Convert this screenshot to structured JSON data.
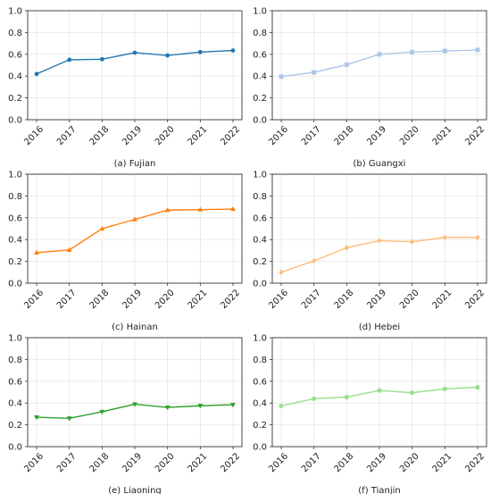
{
  "chart_data": [
    {
      "type": "line",
      "caption": "(a) Fujian",
      "x": [
        "2016",
        "2017",
        "2018",
        "2019",
        "2020",
        "2021",
        "2022"
      ],
      "series": [
        {
          "values": [
            0.42,
            0.55,
            0.555,
            0.615,
            0.59,
            0.62,
            0.635
          ],
          "color": "#1f77b4",
          "marker": "circle"
        }
      ],
      "ylim": [
        0,
        1.0
      ],
      "yticks": [
        "0.0",
        "0.2",
        "0.4",
        "0.6",
        "0.8",
        "1.0"
      ],
      "grid": true
    },
    {
      "type": "line",
      "caption": "(b) Guangxi",
      "x": [
        "2016",
        "2017",
        "2018",
        "2019",
        "2020",
        "2021",
        "2022"
      ],
      "series": [
        {
          "values": [
            0.395,
            0.435,
            0.505,
            0.6,
            0.62,
            0.63,
            0.64
          ],
          "color": "#aec7e8",
          "marker": "square"
        }
      ],
      "ylim": [
        0,
        1.0
      ],
      "yticks": [
        "0.0",
        "0.2",
        "0.4",
        "0.6",
        "0.8",
        "1.0"
      ],
      "grid": true
    },
    {
      "type": "line",
      "caption": "(c) Hainan",
      "x": [
        "2016",
        "2017",
        "2018",
        "2019",
        "2020",
        "2021",
        "2022"
      ],
      "series": [
        {
          "values": [
            0.28,
            0.305,
            0.5,
            0.585,
            0.67,
            0.675,
            0.68
          ],
          "color": "#ff7f0e",
          "marker": "triangle-up"
        }
      ],
      "ylim": [
        0,
        1.0
      ],
      "yticks": [
        "0.0",
        "0.2",
        "0.4",
        "0.6",
        "0.8",
        "1.0"
      ],
      "grid": true
    },
    {
      "type": "line",
      "caption": "(d) Hebei",
      "x": [
        "2016",
        "2017",
        "2018",
        "2019",
        "2020",
        "2021",
        "2022"
      ],
      "series": [
        {
          "values": [
            0.1,
            0.205,
            0.325,
            0.39,
            0.38,
            0.42,
            0.42
          ],
          "color": "#ffbb78",
          "marker": "diamond"
        }
      ],
      "ylim": [
        0,
        1.0
      ],
      "yticks": [
        "0.0",
        "0.2",
        "0.4",
        "0.6",
        "0.8",
        "1.0"
      ],
      "grid": true
    },
    {
      "type": "line",
      "caption": "(e) Liaoning",
      "x": [
        "2016",
        "2017",
        "2018",
        "2019",
        "2020",
        "2021",
        "2022"
      ],
      "series": [
        {
          "values": [
            0.27,
            0.26,
            0.32,
            0.39,
            0.36,
            0.375,
            0.385
          ],
          "color": "#2ca02c",
          "marker": "triangle-down"
        }
      ],
      "ylim": [
        0,
        1.0
      ],
      "yticks": [
        "0.0",
        "0.2",
        "0.4",
        "0.6",
        "0.8",
        "1.0"
      ],
      "grid": true
    },
    {
      "type": "line",
      "caption": "(f) Tianjin",
      "x": [
        "2016",
        "2017",
        "2018",
        "2019",
        "2020",
        "2021",
        "2022"
      ],
      "series": [
        {
          "values": [
            0.375,
            0.44,
            0.455,
            0.515,
            0.495,
            0.53,
            0.545
          ],
          "color": "#98df8a",
          "marker": "pentagon"
        }
      ],
      "ylim": [
        0,
        1.0
      ],
      "yticks": [
        "0.0",
        "0.2",
        "0.4",
        "0.6",
        "0.8",
        "1.0"
      ],
      "grid": true
    }
  ]
}
